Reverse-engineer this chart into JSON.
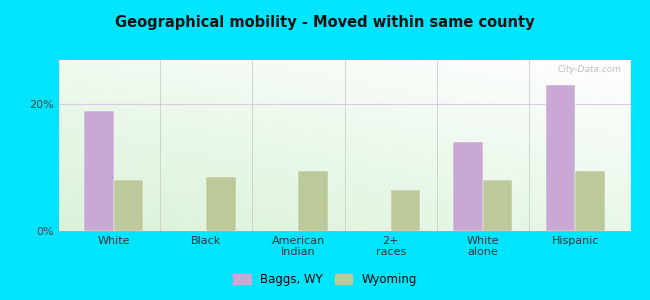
{
  "title": "Geographical mobility - Moved within same county",
  "categories": [
    "White",
    "Black",
    "American\nIndian",
    "2+\nraces",
    "White\nalone",
    "Hispanic"
  ],
  "baggs_values": [
    19.0,
    0.0,
    0.0,
    0.0,
    14.0,
    23.0
  ],
  "wyoming_values": [
    8.0,
    8.5,
    9.5,
    6.5,
    8.0,
    9.5
  ],
  "baggs_color": "#c9a8d4",
  "wyoming_color": "#bcc99a",
  "ylim": [
    0,
    27
  ],
  "yticks": [
    0,
    20
  ],
  "ytick_labels": [
    "0%",
    "20%"
  ],
  "outer_bg": "#00e5ff",
  "bar_width": 0.32,
  "legend_labels": [
    "Baggs, WY",
    "Wyoming"
  ],
  "watermark": "City-Data.com",
  "grid_color": "#ddc8e8",
  "separator_color": "#cccccc",
  "plot_bg_bottom": "#c8e6c9",
  "plot_bg_top": "#f0fff0"
}
